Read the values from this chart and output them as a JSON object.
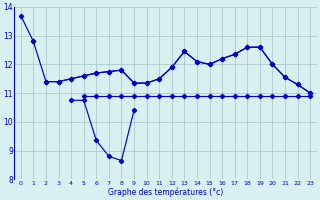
{
  "x": [
    0,
    1,
    2,
    3,
    4,
    5,
    6,
    7,
    8,
    9,
    10,
    11,
    12,
    13,
    14,
    15,
    16,
    17,
    18,
    19,
    20,
    21,
    22,
    23
  ],
  "line1": [
    13.7,
    12.8,
    11.4,
    11.4,
    11.5,
    11.6,
    11.7,
    11.75,
    11.8,
    11.35,
    11.35,
    11.5,
    11.9,
    12.45,
    12.1,
    12.0,
    12.2,
    12.35,
    12.6,
    12.6,
    12.0,
    11.55,
    11.3,
    11.0
  ],
  "line2": [
    null,
    null,
    11.4,
    11.4,
    11.5,
    11.6,
    11.7,
    11.75,
    11.8,
    11.35,
    11.35,
    11.5,
    11.9,
    12.45,
    12.1,
    12.0,
    12.2,
    12.35,
    12.6,
    12.6,
    12.0,
    11.55,
    11.3,
    11.0
  ],
  "line3": [
    null,
    null,
    null,
    null,
    10.75,
    10.75,
    9.35,
    8.8,
    8.65,
    10.4,
    null,
    null,
    null,
    null,
    null,
    null,
    null,
    null,
    null,
    null,
    null,
    null,
    null,
    null
  ],
  "line4": [
    null,
    null,
    null,
    null,
    null,
    10.9,
    10.9,
    10.9,
    10.9,
    10.9,
    10.9,
    10.9,
    10.9,
    10.9,
    10.9,
    10.9,
    10.9,
    10.9,
    10.9,
    10.9,
    10.9,
    10.9,
    10.9,
    10.9
  ],
  "line_color": "#0000cc",
  "bg_color": "#d8f0f0",
  "grid_color": "#aacccc",
  "xlabel": "Graphe des températures (°c)",
  "ylim": [
    8,
    14
  ],
  "xlim": [
    -0.5,
    23.5
  ],
  "yticks": [
    8,
    9,
    10,
    11,
    12,
    13,
    14
  ],
  "xticks": [
    0,
    1,
    2,
    3,
    4,
    5,
    6,
    7,
    8,
    9,
    10,
    11,
    12,
    13,
    14,
    15,
    16,
    17,
    18,
    19,
    20,
    21,
    22,
    23
  ]
}
